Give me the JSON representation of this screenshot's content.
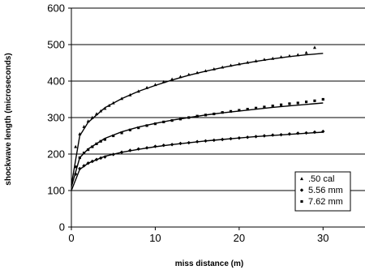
{
  "chart_data": {
    "type": "scatter",
    "xlabel": "miss distance (m)",
    "ylabel": "shockwave length (microseconds)",
    "xlim": [
      0,
      35
    ],
    "ylim": [
      0,
      600
    ],
    "x_ticks": [
      0,
      10,
      20,
      30
    ],
    "y_ticks": [
      0,
      100,
      200,
      300,
      400,
      500,
      600
    ],
    "grid": "horizontal",
    "legend_position": "lower-right",
    "series": [
      {
        "name": ".50 cal",
        "marker": "triangle",
        "x": [
          0.5,
          1,
          1.5,
          2,
          2.5,
          3,
          3.5,
          4,
          4.5,
          5,
          6,
          7,
          8,
          9,
          10,
          11,
          12,
          13,
          14,
          15,
          16,
          17,
          18,
          19,
          20,
          21,
          22,
          23,
          24,
          25,
          26,
          27,
          28,
          29
        ],
        "y": [
          220,
          255,
          275,
          290,
          300,
          310,
          318,
          325,
          333,
          340,
          352,
          362,
          372,
          382,
          390,
          398,
          405,
          412,
          418,
          423,
          428,
          433,
          438,
          443,
          447,
          451,
          455,
          459,
          462,
          466,
          469,
          472,
          478,
          492
        ],
        "fit": {
          "x": [
            0,
            1,
            2,
            4,
            6,
            8,
            10,
            12,
            14,
            16,
            18,
            20,
            22,
            24,
            26,
            28,
            30
          ],
          "y": [
            115,
            250,
            287,
            327,
            352,
            372,
            388,
            403,
            416,
            427,
            437,
            446,
            454,
            461,
            467,
            472,
            476
          ]
        }
      },
      {
        "name": "5.56 mm",
        "marker": "diamond",
        "x": [
          0.5,
          1,
          1.5,
          2,
          2.5,
          3,
          3.5,
          4,
          5,
          6,
          7,
          8,
          9,
          10,
          11,
          12,
          13,
          14,
          15,
          16,
          17,
          18,
          19,
          20,
          21,
          22,
          23,
          24,
          25,
          26,
          27,
          28,
          29,
          30
        ],
        "y": [
          145,
          160,
          168,
          175,
          180,
          185,
          189,
          192,
          199,
          205,
          210,
          214,
          217,
          221,
          224,
          226,
          229,
          231,
          234,
          236,
          238,
          240,
          242,
          244,
          246,
          248,
          250,
          252,
          253,
          255,
          257,
          258,
          260,
          262
        ],
        "fit": {
          "x": [
            0,
            1,
            2,
            4,
            6,
            8,
            10,
            12,
            14,
            16,
            18,
            20,
            22,
            24,
            26,
            28,
            30
          ],
          "y": [
            100,
            158,
            175,
            194,
            205,
            213,
            220,
            226,
            231,
            236,
            240,
            244,
            248,
            251,
            254,
            257,
            260
          ]
        }
      },
      {
        "name": "7.62 mm",
        "marker": "square",
        "x": [
          0.5,
          1,
          1.5,
          2,
          2.5,
          3,
          3.5,
          4,
          5,
          6,
          7,
          8,
          9,
          10,
          11,
          12,
          13,
          14,
          15,
          16,
          17,
          18,
          19,
          20,
          21,
          22,
          23,
          24,
          25,
          26,
          27,
          28,
          29,
          30
        ],
        "y": [
          165,
          190,
          203,
          212,
          220,
          228,
          235,
          240,
          250,
          258,
          266,
          272,
          278,
          283,
          288,
          292,
          296,
          300,
          304,
          307,
          310,
          314,
          317,
          320,
          323,
          326,
          329,
          332,
          335,
          338,
          340,
          343,
          346,
          350
        ],
        "fit": {
          "x": [
            0,
            1,
            2,
            4,
            6,
            8,
            10,
            12,
            14,
            16,
            18,
            20,
            22,
            24,
            26,
            28,
            30
          ],
          "y": [
            110,
            190,
            214,
            243,
            261,
            274,
            284,
            293,
            300,
            307,
            313,
            318,
            323,
            328,
            332,
            336,
            340
          ]
        }
      }
    ]
  }
}
